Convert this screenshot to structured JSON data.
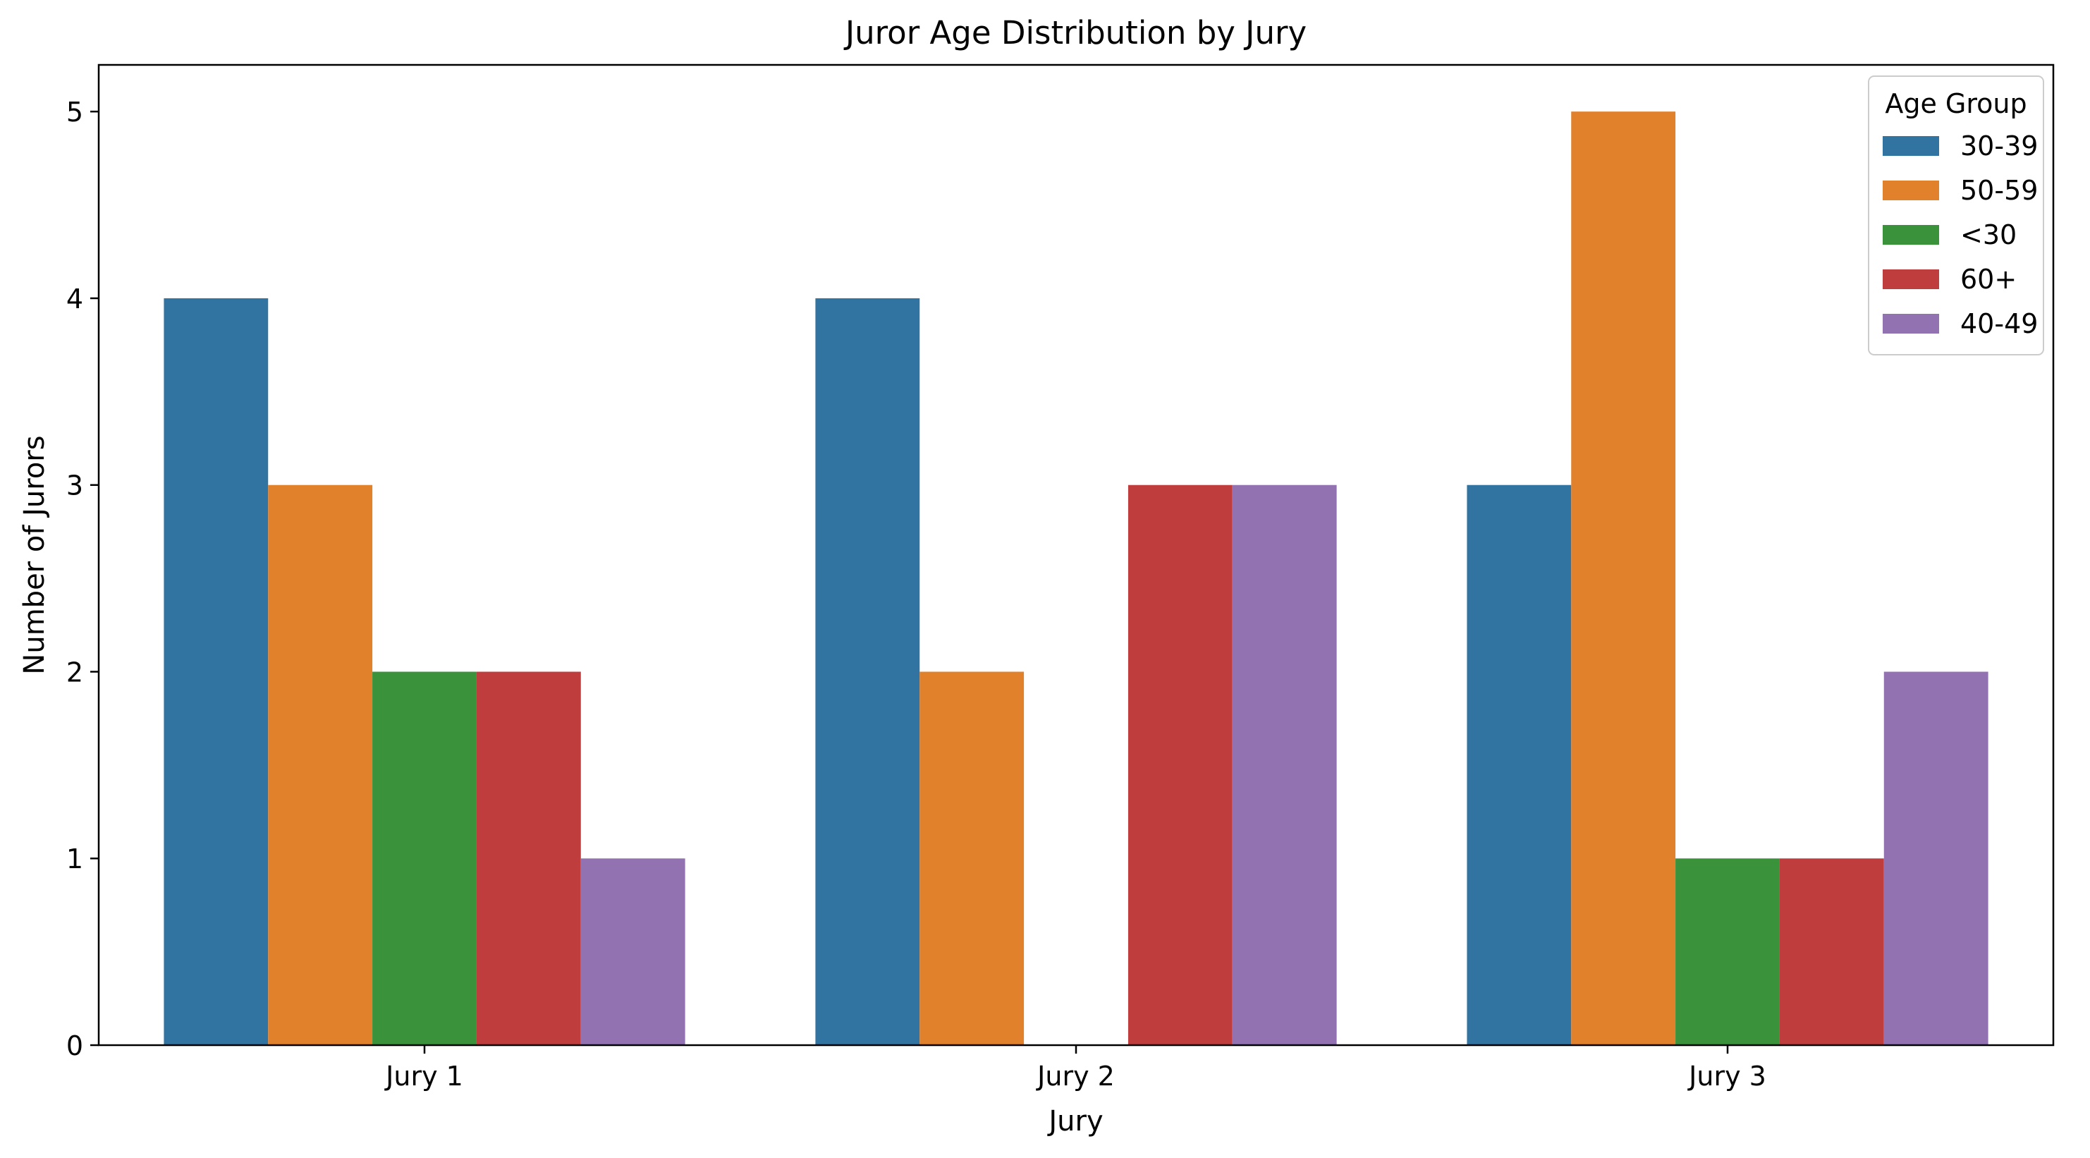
{
  "chart_data": {
    "type": "bar",
    "title": "Juror Age Distribution by Jury",
    "xlabel": "Jury",
    "ylabel": "Number of Jurors",
    "categories": [
      "Jury 1",
      "Jury 2",
      "Jury 3"
    ],
    "ylim": [
      0,
      5.25
    ],
    "yticks": [
      "0",
      "1",
      "2",
      "3",
      "4",
      "5"
    ],
    "grid": false,
    "legend": {
      "title": "Age Group",
      "position": "top-right"
    },
    "series": [
      {
        "name": "30-39",
        "color": "#3274a1",
        "values": [
          4,
          4,
          3
        ]
      },
      {
        "name": "50-59",
        "color": "#e1812c",
        "values": [
          3,
          2,
          5
        ]
      },
      {
        "name": "<30",
        "color": "#3a923a",
        "values": [
          2,
          0,
          1
        ]
      },
      {
        "name": "60+",
        "color": "#c03d3e",
        "values": [
          2,
          3,
          1
        ]
      },
      {
        "name": "40-49",
        "color": "#9372b2",
        "values": [
          1,
          3,
          2
        ]
      }
    ]
  }
}
